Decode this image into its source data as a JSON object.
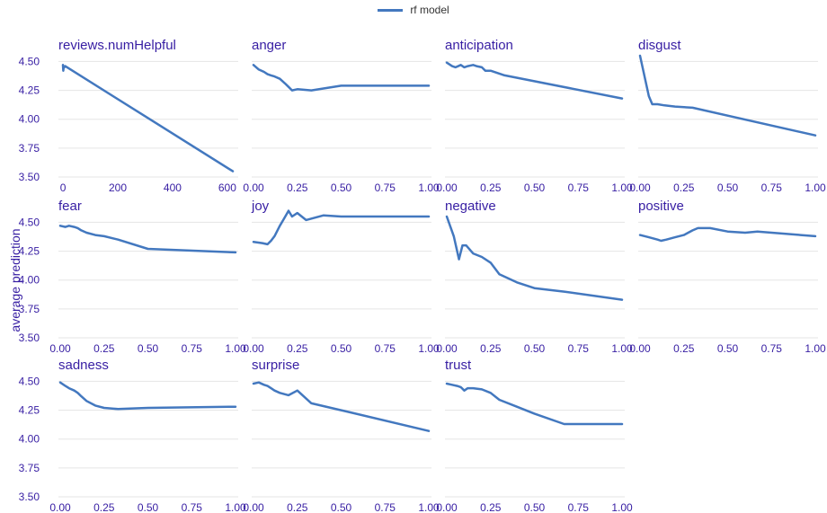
{
  "legend": {
    "label": "rf  model",
    "color": "#4378bf"
  },
  "ylabel": "average prediction",
  "style": {
    "line_color": "#4378bf",
    "text_color": "#371ea3",
    "grid_color": "#e5e5e5",
    "grid": true,
    "legend_placement": "top-center"
  },
  "chart_data": {
    "type": "line",
    "grid": true,
    "legend_placement": "top-center",
    "ylim": [
      3.5,
      4.55
    ],
    "yticks": [
      3.5,
      3.75,
      4.0,
      4.25,
      4.5
    ],
    "ytick_labels": [
      "3.50",
      "3.75",
      "4.00",
      "4.25",
      "4.50"
    ],
    "xlabel": "",
    "ylabel": "average prediction",
    "panels": [
      {
        "title": "reviews.numHelpful",
        "xlim": [
          -10,
          630
        ],
        "xticks": [
          0,
          200,
          400,
          600
        ],
        "xtick_labels": [
          "0",
          "200",
          "400",
          "600"
        ],
        "series": [
          {
            "name": "rf  model",
            "x": [
              0,
              1,
              2,
              3,
              5,
              8,
              620
            ],
            "y": [
              4.47,
              4.42,
              4.44,
              4.46,
              4.45,
              4.46,
              3.55
            ]
          }
        ]
      },
      {
        "title": "anger",
        "xlim": [
          0,
          1
        ],
        "xticks": [
          0,
          0.25,
          0.5,
          0.75,
          1
        ],
        "xtick_labels": [
          "0.00",
          "0.25",
          "0.50",
          "0.75",
          "1.00"
        ],
        "series": [
          {
            "name": "rf  model",
            "x": [
              0,
              0.03,
              0.06,
              0.08,
              0.1,
              0.12,
              0.15,
              0.18,
              0.2,
              0.22,
              0.25,
              0.33,
              0.5,
              1.0
            ],
            "y": [
              4.47,
              4.43,
              4.41,
              4.39,
              4.38,
              4.37,
              4.35,
              4.31,
              4.28,
              4.25,
              4.26,
              4.25,
              4.29,
              4.29
            ]
          }
        ]
      },
      {
        "title": "anticipation",
        "xlim": [
          0,
          1
        ],
        "xticks": [
          0,
          0.25,
          0.5,
          0.75,
          1
        ],
        "xtick_labels": [
          "0.00",
          "0.25",
          "0.50",
          "0.75",
          "1.00"
        ],
        "series": [
          {
            "name": "rf  model",
            "x": [
              0,
              0.03,
              0.05,
              0.08,
              0.1,
              0.12,
              0.15,
              0.17,
              0.2,
              0.22,
              0.25,
              0.33,
              1.0
            ],
            "y": [
              4.49,
              4.46,
              4.45,
              4.47,
              4.45,
              4.46,
              4.47,
              4.46,
              4.45,
              4.42,
              4.42,
              4.38,
              4.18
            ]
          }
        ]
      },
      {
        "title": "disgust",
        "xlim": [
          0,
          1
        ],
        "xticks": [
          0,
          0.25,
          0.5,
          0.75,
          1
        ],
        "xtick_labels": [
          "0.00",
          "0.25",
          "0.50",
          "0.75",
          "1.00"
        ],
        "series": [
          {
            "name": "rf  model",
            "x": [
              0,
              0.05,
              0.07,
              0.1,
              0.14,
              0.2,
              0.3,
              1.0
            ],
            "y": [
              4.55,
              4.2,
              4.13,
              4.13,
              4.12,
              4.11,
              4.1,
              3.86
            ]
          }
        ]
      },
      {
        "title": "fear",
        "xlim": [
          0,
          1
        ],
        "xticks": [
          0,
          0.25,
          0.5,
          0.75,
          1
        ],
        "xtick_labels": [
          "0.00",
          "0.25",
          "0.50",
          "0.75",
          "1.00"
        ],
        "series": [
          {
            "name": "rf  model",
            "x": [
              0,
              0.03,
              0.05,
              0.08,
              0.1,
              0.12,
              0.15,
              0.2,
              0.25,
              0.33,
              0.5,
              1.0
            ],
            "y": [
              4.47,
              4.46,
              4.47,
              4.46,
              4.45,
              4.43,
              4.41,
              4.39,
              4.38,
              4.35,
              4.27,
              4.24
            ]
          }
        ]
      },
      {
        "title": "joy",
        "xlim": [
          0,
          1
        ],
        "xticks": [
          0,
          0.25,
          0.5,
          0.75,
          1
        ],
        "xtick_labels": [
          "0.00",
          "0.25",
          "0.50",
          "0.75",
          "1.00"
        ],
        "series": [
          {
            "name": "rf  model",
            "x": [
              0,
              0.05,
              0.08,
              0.1,
              0.12,
              0.15,
              0.17,
              0.2,
              0.22,
              0.25,
              0.3,
              0.4,
              0.5,
              1.0
            ],
            "y": [
              4.33,
              4.32,
              4.31,
              4.34,
              4.38,
              4.47,
              4.52,
              4.6,
              4.55,
              4.58,
              4.52,
              4.56,
              4.55,
              4.55
            ]
          }
        ]
      },
      {
        "title": "negative",
        "xlim": [
          0,
          1
        ],
        "xticks": [
          0,
          0.25,
          0.5,
          0.75,
          1
        ],
        "xtick_labels": [
          "0.00",
          "0.25",
          "0.50",
          "0.75",
          "1.00"
        ],
        "series": [
          {
            "name": "rf  model",
            "x": [
              0,
              0.04,
              0.07,
              0.09,
              0.11,
              0.15,
              0.2,
              0.25,
              0.3,
              0.4,
              0.5,
              0.67,
              1.0
            ],
            "y": [
              4.55,
              4.38,
              4.18,
              4.3,
              4.3,
              4.23,
              4.2,
              4.15,
              4.05,
              3.98,
              3.93,
              3.9,
              3.83
            ]
          }
        ]
      },
      {
        "title": "positive",
        "xlim": [
          0,
          1
        ],
        "xticks": [
          0,
          0.25,
          0.5,
          0.75,
          1
        ],
        "xtick_labels": [
          "0.00",
          "0.25",
          "0.50",
          "0.75",
          "1.00"
        ],
        "series": [
          {
            "name": "rf  model",
            "x": [
              0,
              0.05,
              0.1,
              0.12,
              0.15,
              0.2,
              0.25,
              0.3,
              0.33,
              0.4,
              0.5,
              0.6,
              0.67,
              1.0
            ],
            "y": [
              4.39,
              4.37,
              4.35,
              4.34,
              4.35,
              4.37,
              4.39,
              4.43,
              4.45,
              4.45,
              4.42,
              4.41,
              4.42,
              4.38
            ]
          }
        ]
      },
      {
        "title": "sadness",
        "xlim": [
          0,
          1
        ],
        "xticks": [
          0,
          0.25,
          0.5,
          0.75,
          1
        ],
        "xtick_labels": [
          "0.00",
          "0.25",
          "0.50",
          "0.75",
          "1.00"
        ],
        "series": [
          {
            "name": "rf  model",
            "x": [
              0,
              0.03,
              0.05,
              0.08,
              0.1,
              0.12,
              0.15,
              0.2,
              0.25,
              0.33,
              0.5,
              1.0
            ],
            "y": [
              4.49,
              4.46,
              4.44,
              4.42,
              4.4,
              4.37,
              4.33,
              4.29,
              4.27,
              4.26,
              4.27,
              4.28
            ]
          }
        ]
      },
      {
        "title": "surprise",
        "xlim": [
          0,
          1
        ],
        "xticks": [
          0,
          0.25,
          0.5,
          0.75,
          1
        ],
        "xtick_labels": [
          "0.00",
          "0.25",
          "0.50",
          "0.75",
          "1.00"
        ],
        "series": [
          {
            "name": "rf  model",
            "x": [
              0,
              0.03,
              0.06,
              0.08,
              0.1,
              0.12,
              0.15,
              0.2,
              0.25,
              0.33,
              0.5,
              1.0
            ],
            "y": [
              4.48,
              4.49,
              4.47,
              4.46,
              4.44,
              4.42,
              4.4,
              4.38,
              4.42,
              4.31,
              4.25,
              4.07
            ]
          }
        ]
      },
      {
        "title": "trust",
        "xlim": [
          0,
          1
        ],
        "xticks": [
          0,
          0.25,
          0.5,
          0.75,
          1
        ],
        "xtick_labels": [
          "0.00",
          "0.25",
          "0.50",
          "0.75",
          "1.00"
        ],
        "series": [
          {
            "name": "rf  model",
            "x": [
              0,
              0.03,
              0.06,
              0.08,
              0.1,
              0.12,
              0.15,
              0.2,
              0.25,
              0.3,
              0.4,
              0.5,
              0.67,
              1.0
            ],
            "y": [
              4.48,
              4.47,
              4.46,
              4.45,
              4.42,
              4.44,
              4.44,
              4.43,
              4.4,
              4.34,
              4.28,
              4.22,
              4.13,
              4.13
            ]
          }
        ]
      }
    ]
  }
}
